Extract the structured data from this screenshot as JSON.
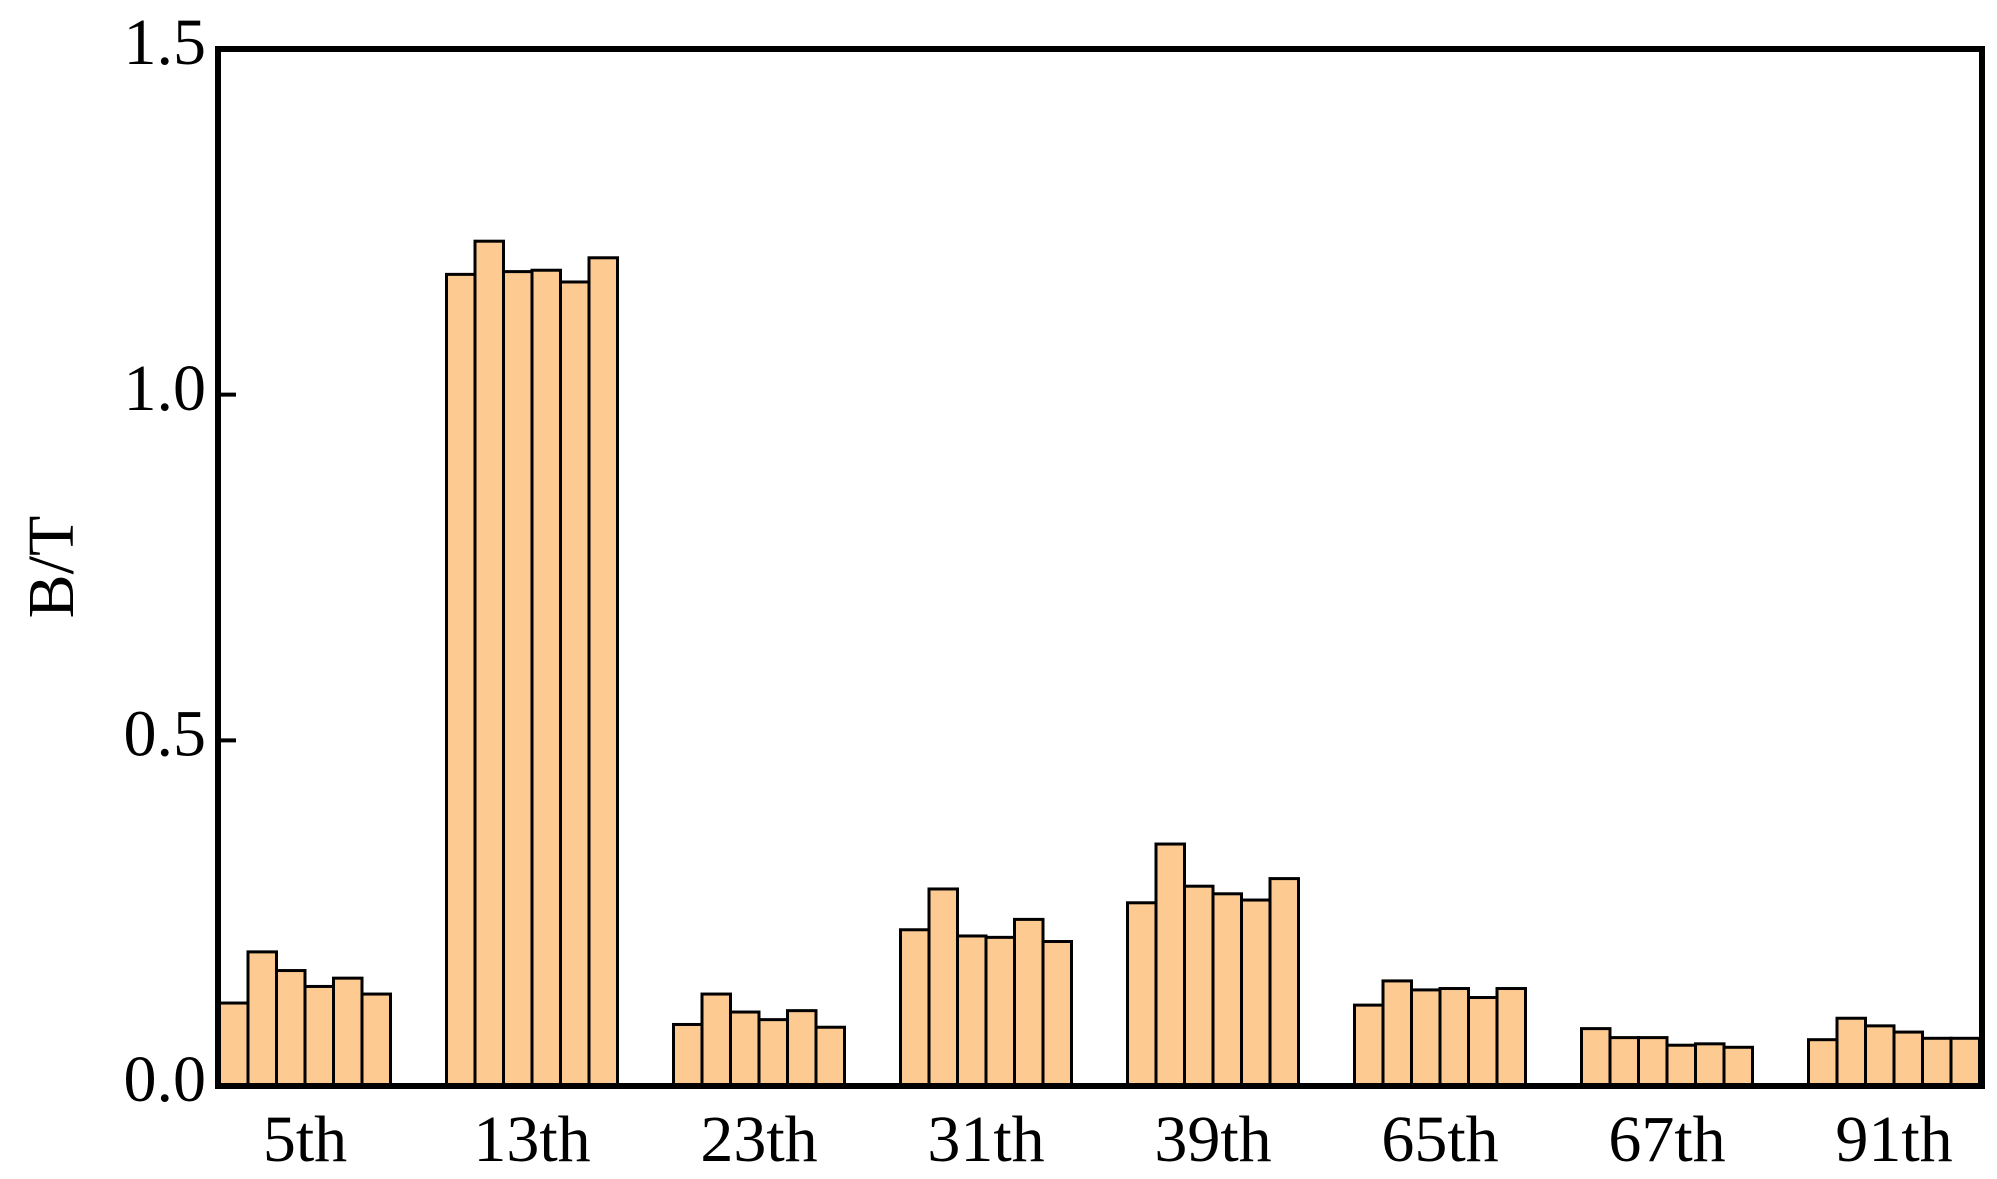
{
  "chart_data": {
    "type": "bar",
    "ylabel": "B/T",
    "categories": [
      "5th",
      "13th",
      "23th",
      "31th",
      "39th",
      "65th",
      "67th",
      "91th"
    ],
    "values": [
      [
        0.12,
        0.194,
        0.167,
        0.144,
        0.156,
        0.133
      ],
      [
        1.174,
        1.222,
        1.178,
        1.18,
        1.163,
        1.198
      ],
      [
        0.089,
        0.133,
        0.107,
        0.096,
        0.109,
        0.085
      ],
      [
        0.226,
        0.285,
        0.217,
        0.215,
        0.241,
        0.209
      ],
      [
        0.265,
        0.35,
        0.289,
        0.278,
        0.269,
        0.3
      ],
      [
        0.117,
        0.152,
        0.139,
        0.141,
        0.128,
        0.141
      ],
      [
        0.083,
        0.07,
        0.07,
        0.059,
        0.061,
        0.056
      ],
      [
        0.067,
        0.098,
        0.087,
        0.078,
        0.069,
        0.069
      ]
    ],
    "color": "#fdca92",
    "ylim": [
      0,
      1.5
    ],
    "yticks": [
      {
        "value": 0,
        "label": "0.0"
      },
      {
        "value": 0.5,
        "label": "0.5"
      },
      {
        "value": 1,
        "label": "1.0"
      },
      {
        "value": 1.5,
        "label": "1.5"
      }
    ]
  }
}
